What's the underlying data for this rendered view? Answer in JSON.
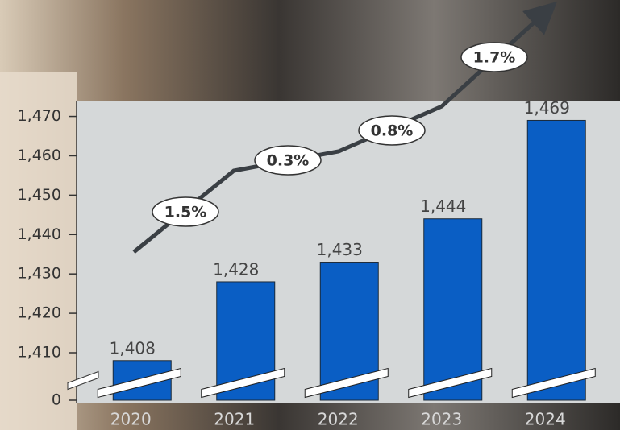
{
  "chart_data": {
    "type": "bar",
    "categories": [
      "2020",
      "2021",
      "2022",
      "2023",
      "2024"
    ],
    "values": [
      1408,
      1428,
      1433,
      1444,
      1469
    ],
    "value_labels": [
      "1,408",
      "1,428",
      "1,433",
      "1,444",
      "1,469"
    ],
    "color": "#0a5ec4",
    "ylim": [
      0,
      1474
    ],
    "yticks": [
      0,
      {
        "value": 1410,
        "label": "1,410"
      },
      {
        "value": 1420,
        "label": "1,420"
      },
      {
        "value": 1430,
        "label": "1,430"
      },
      {
        "value": 1440,
        "label": "1,440"
      },
      {
        "value": 1450,
        "label": "1,450"
      },
      {
        "value": 1460,
        "label": "1,460"
      },
      {
        "value": 1470,
        "label": "1,470"
      }
    ],
    "axis_break": true,
    "grid": false,
    "annotations": [
      "1.5%",
      "0.3%",
      "0.8%",
      "1.7%"
    ]
  }
}
